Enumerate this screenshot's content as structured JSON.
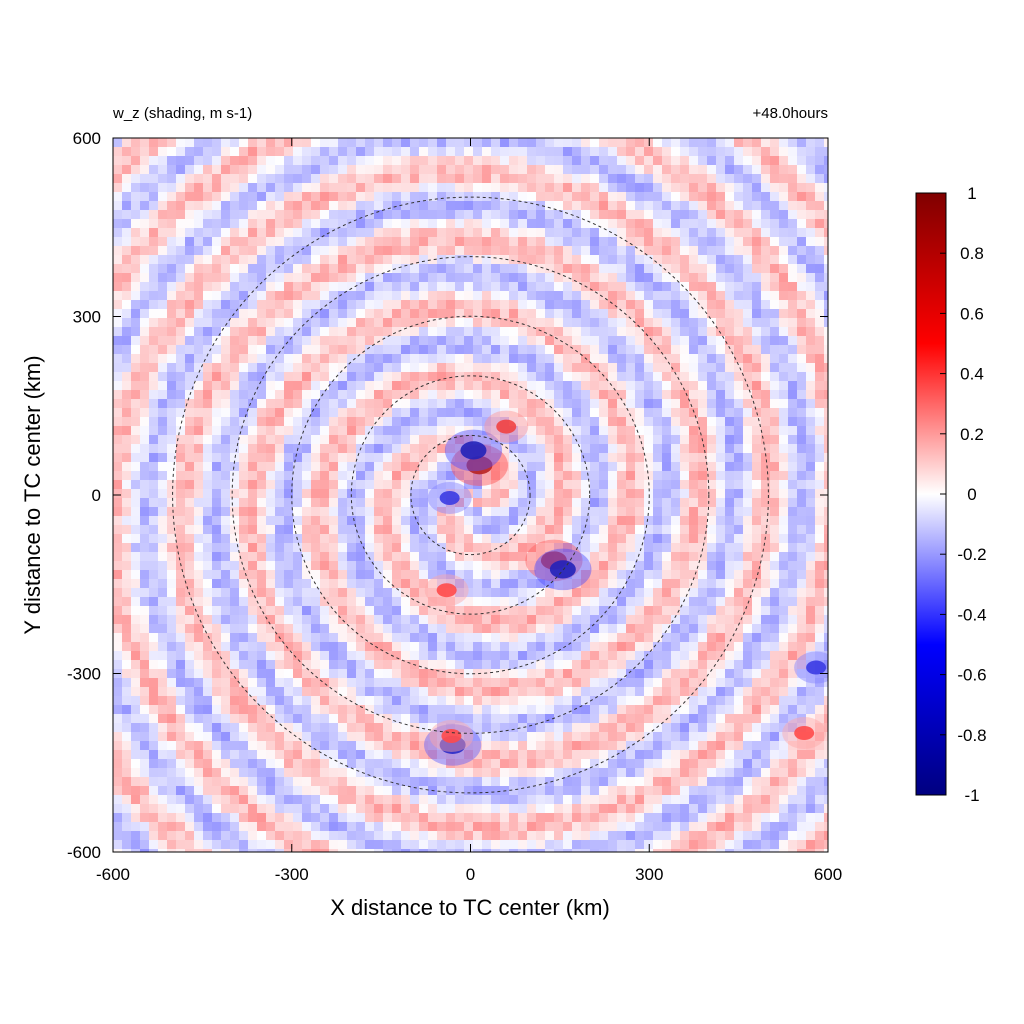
{
  "chart_data": {
    "type": "heatmap",
    "title": "w_z (shading, m s-1)",
    "time_label": "+48.0hours",
    "xlabel": "X distance to TC center (km)",
    "ylabel": "Y distance to TC center (km)",
    "xlim": [
      -600,
      600
    ],
    "ylim": [
      -600,
      600
    ],
    "xticks": [
      -600,
      -300,
      0,
      300,
      600
    ],
    "yticks": [
      -600,
      -300,
      0,
      300,
      600
    ],
    "colorbar": {
      "min": -1,
      "max": 1,
      "ticks": [
        -1,
        -0.8,
        -0.6,
        -0.4,
        -0.2,
        0,
        0.2,
        0.4,
        0.6,
        0.8,
        1
      ],
      "tick_labels": [
        "-1",
        "-0.8",
        "-0.6",
        "-0.4",
        "-0.2",
        "0",
        "0.2",
        "0.4",
        "0.6",
        "0.8",
        "1"
      ],
      "colormap": [
        "#000080",
        "#0000ff",
        "#ffffff",
        "#ff0000",
        "#800000"
      ]
    },
    "range_rings_km": [
      100,
      200,
      300,
      400,
      500
    ],
    "features": [
      {
        "name": "inner-core-updraft",
        "x": 15,
        "y": 50,
        "value": 1.0
      },
      {
        "name": "inner-core-downdraft-arc",
        "x": 5,
        "y": 75,
        "value": -1.0
      },
      {
        "name": "eyewall-southwest",
        "x": -35,
        "y": -5,
        "value": -0.7
      },
      {
        "name": "rainband-southeast-updraft",
        "x": 140,
        "y": -110,
        "value": 0.9
      },
      {
        "name": "rainband-southeast-downdraft",
        "x": 155,
        "y": -125,
        "value": -1.0
      },
      {
        "name": "rainband-northeast",
        "x": 60,
        "y": 115,
        "value": 0.6
      },
      {
        "name": "cell-south-updraft",
        "x": -30,
        "y": -420,
        "value": -0.9
      },
      {
        "name": "cell-south-downdraft",
        "x": -32,
        "y": -405,
        "value": 0.5
      },
      {
        "name": "east-edge-cell-blue",
        "x": 580,
        "y": -290,
        "value": -0.7
      },
      {
        "name": "east-edge-cell-red",
        "x": 560,
        "y": -400,
        "value": 0.5
      },
      {
        "name": "south-band",
        "x": -40,
        "y": -160,
        "value": 0.5
      }
    ]
  }
}
